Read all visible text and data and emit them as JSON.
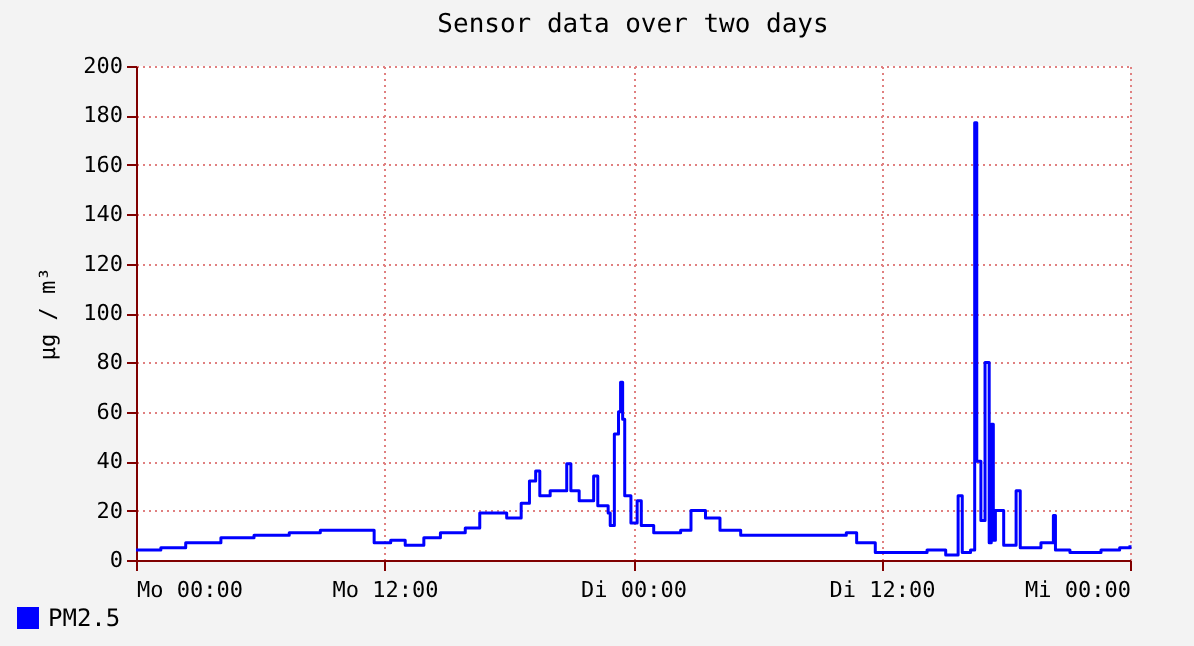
{
  "chart_data": {
    "type": "step",
    "title": "Sensor data over two days",
    "ylabel": "µg / m³",
    "x": [
      "--01-01T00:00",
      "--01-01T01:12",
      "--01-01T02:24",
      "--01-01T04:06",
      "--01-01T05:42",
      "--01-01T07:24",
      "--01-01T08:54",
      "--01-01T10:18",
      "--01-01T11:30",
      "--01-01T12:18",
      "--01-01T13:00",
      "--01-01T13:54",
      "--01-01T14:42",
      "--01-01T15:54",
      "--01-01T16:36",
      "--01-01T17:54",
      "--01-01T18:36",
      "--01-01T19:00",
      "--01-01T19:18",
      "--01-01T19:30",
      "--01-01T20:00",
      "--01-01T20:48",
      "--01-01T21:00",
      "--01-01T21:24",
      "--01-01T22:06",
      "--01-01T22:18",
      "--01-01T22:48",
      "--01-01T22:54",
      "--01-01T23:06",
      "--01-01T23:18",
      "--01-01T23:24",
      "--01-01T23:30",
      "--01-01T23:36",
      "--01-01T23:54",
      "--01-02T00:12",
      "--01-02T00:24",
      "--01-02T01:00",
      "--01-02T02:18",
      "--01-02T02:48",
      "--01-02T03:30",
      "--01-02T04:12",
      "--01-02T05:12",
      "--01-02T07:24",
      "--01-02T09:42",
      "--01-02T10:18",
      "--01-02T10:48",
      "--01-02T11:42",
      "--01-02T13:54",
      "--01-02T14:12",
      "--01-02T15:06",
      "--01-02T15:42",
      "--01-02T15:54",
      "--01-02T16:18",
      "--01-02T16:30",
      "--01-02T16:36",
      "--01-02T16:48",
      "--01-02T17:00",
      "--01-02T17:12",
      "--01-02T17:18",
      "--01-02T17:24",
      "--01-02T17:30",
      "--01-02T17:54",
      "--01-02T18:30",
      "--01-02T18:42",
      "--01-02T19:42",
      "--01-02T20:18",
      "--01-02T20:24",
      "--01-02T21:06",
      "--01-02T22:36",
      "--01-02T23:30",
      "--01-03T00:00"
    ],
    "series": [
      {
        "name": "PM2.5",
        "color": "#0000ff",
        "values": [
          4,
          5,
          7,
          9,
          10,
          11,
          12,
          12,
          7,
          8,
          6,
          9,
          11,
          13,
          19,
          17,
          23,
          32,
          36,
          26,
          28,
          39,
          28,
          24,
          34,
          22,
          19,
          14,
          51,
          60,
          72,
          57,
          26,
          15,
          24,
          14,
          11,
          12,
          20,
          17,
          12,
          10,
          10,
          10,
          11,
          7,
          3,
          3,
          4,
          2,
          26,
          3,
          4,
          177,
          40,
          16,
          80,
          7,
          55,
          8,
          20,
          6,
          28,
          5,
          7,
          18,
          4,
          3,
          4,
          5,
          6
        ]
      }
    ],
    "xlim": [
      "--01-01T00:00",
      "--01-03T00:00"
    ],
    "xticks": [
      {
        "value": "--01-01T00:00",
        "label": "Mo 00:00"
      },
      {
        "value": "--01-01T12:00",
        "label": "Mo 12:00"
      },
      {
        "value": "--01-02T00:00",
        "label": "Di 00:00"
      },
      {
        "value": "--01-02T12:00",
        "label": "Di 12:00"
      },
      {
        "value": "--01-03T00:00",
        "label": "Mi 00:00"
      }
    ],
    "ylim": [
      0,
      200
    ],
    "yticks": [
      0,
      20,
      40,
      60,
      80,
      100,
      120,
      140,
      160,
      180,
      200
    ],
    "grid": true,
    "legend": "bottom left"
  }
}
